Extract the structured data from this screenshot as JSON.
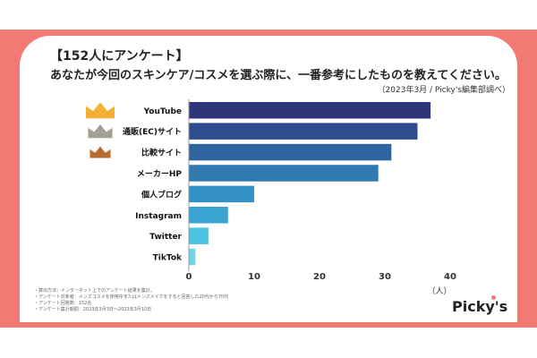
{
  "header": {
    "title_line1": "【152人にアンケート】",
    "title_line2": "あなたが今回のスキンケア/コスメを選ぶ際に、一番参考にしたものを教えてください。",
    "source": "（2023年3月 / Picky's編集部調べ）"
  },
  "notes": [
    "・算出方法：インターネット上でのアンケート結果を集計。",
    "・アンケート対象者：メンズコスメを使用中またはメンズメイクをすると回答した20代から70代",
    "・アンケート回答数：152名",
    "・アンケート集計期間：2023年3月3日〜2023年3月10日"
  ],
  "brand": {
    "logo_text": "Picky's"
  },
  "colors": {
    "band": "#f27a75",
    "gold": "#f2b134",
    "silver": "#a59f95",
    "bronze": "#b86b32"
  },
  "icons": [
    "crown-gold-icon",
    "crown-silver-icon",
    "crown-bronze-icon"
  ],
  "chart_data": {
    "type": "bar",
    "orientation": "horizontal",
    "categories": [
      "YouTube",
      "通販(EC)サイト",
      "比較サイト",
      "メーカーHP",
      "個人ブログ",
      "Instagram",
      "Twitter",
      "TikTok"
    ],
    "values": [
      37,
      35,
      31,
      29,
      10,
      6,
      3,
      1
    ],
    "colors": [
      "#2e3578",
      "#2f4c8e",
      "#2f64a0",
      "#3079b1",
      "#3492c4",
      "#3aa5d3",
      "#4cc2e1",
      "#6fd6ea"
    ],
    "xlim": [
      0,
      40
    ],
    "xticks": [
      0,
      10,
      20,
      30,
      40
    ],
    "xunit": "（人）",
    "grid": false
  }
}
